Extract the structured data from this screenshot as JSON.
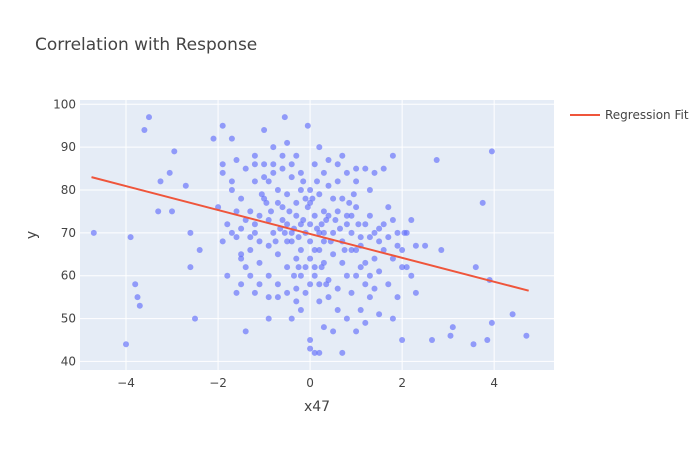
{
  "chart_data": {
    "type": "scatter",
    "title": "Correlation with Response",
    "xlabel": "x47",
    "ylabel": "y",
    "xlim": [
      -5.0,
      5.3
    ],
    "ylim": [
      38,
      101
    ],
    "xticks": [
      -4,
      -2,
      0,
      2,
      4
    ],
    "xtick_labels": [
      "−4",
      "−2",
      "0",
      "2",
      "4"
    ],
    "yticks": [
      40,
      50,
      60,
      70,
      80,
      90,
      100
    ],
    "grid": true,
    "legend_position": "top-right",
    "colors": {
      "points": "#636efa",
      "line": "#ef553b",
      "plot_bg": "#e5ecf6",
      "grid": "#ffffff"
    },
    "series": [
      {
        "kind": "scatter",
        "points": [
          [
            -4.7,
            70
          ],
          [
            -4.0,
            44
          ],
          [
            -3.9,
            69
          ],
          [
            -3.8,
            58
          ],
          [
            -3.75,
            55
          ],
          [
            -3.7,
            53
          ],
          [
            -3.6,
            94
          ],
          [
            -3.5,
            97
          ],
          [
            -3.3,
            75
          ],
          [
            -3.25,
            82
          ],
          [
            -3.05,
            84
          ],
          [
            -2.95,
            89
          ],
          [
            -3.0,
            75
          ],
          [
            -2.7,
            81
          ],
          [
            -2.6,
            62
          ],
          [
            -2.6,
            70
          ],
          [
            -2.5,
            50
          ],
          [
            -2.4,
            66
          ],
          [
            -2.1,
            92
          ],
          [
            -1.9,
            95
          ],
          [
            -1.7,
            92
          ],
          [
            -1.4,
            47
          ],
          [
            -1.0,
            94
          ],
          [
            -0.55,
            97
          ],
          [
            -0.5,
            91
          ],
          [
            -0.05,
            95
          ],
          [
            0.7,
            42
          ],
          [
            0.0,
            43
          ],
          [
            0.1,
            42
          ],
          [
            0.2,
            42
          ],
          [
            2.05,
            70
          ],
          [
            2.2,
            73
          ],
          [
            2.3,
            67
          ],
          [
            2.5,
            67
          ],
          [
            2.65,
            45
          ],
          [
            2.75,
            87
          ],
          [
            2.85,
            66
          ],
          [
            3.05,
            46
          ],
          [
            3.1,
            48
          ],
          [
            3.55,
            44
          ],
          [
            3.6,
            62
          ],
          [
            3.75,
            77
          ],
          [
            3.9,
            59
          ],
          [
            3.85,
            45
          ],
          [
            3.95,
            49
          ],
          [
            3.95,
            89
          ],
          [
            4.4,
            51
          ],
          [
            4.7,
            46
          ],
          [
            -1.8,
            60
          ],
          [
            -1.6,
            56
          ],
          [
            -1.5,
            58
          ],
          [
            -1.2,
            56
          ],
          [
            -0.9,
            50
          ],
          [
            -0.7,
            55
          ],
          [
            -0.4,
            50
          ],
          [
            -0.2,
            52
          ],
          [
            0.0,
            45
          ],
          [
            0.3,
            48
          ],
          [
            0.5,
            47
          ],
          [
            0.8,
            50
          ],
          [
            1.0,
            47
          ],
          [
            1.2,
            49
          ],
          [
            1.5,
            51
          ],
          [
            1.8,
            50
          ],
          [
            2.0,
            45
          ],
          [
            1.6,
            85
          ],
          [
            1.8,
            88
          ],
          [
            1.4,
            84
          ],
          [
            1.3,
            80
          ],
          [
            1.0,
            85
          ],
          [
            0.7,
            88
          ],
          [
            0.4,
            87
          ],
          [
            0.2,
            90
          ],
          [
            -0.3,
            88
          ],
          [
            -0.8,
            90
          ],
          [
            -1.2,
            88
          ],
          [
            -1.6,
            87
          ],
          [
            -1.9,
            84
          ],
          [
            -1.7,
            80
          ],
          [
            -2.0,
            76
          ],
          [
            -1.8,
            72
          ],
          [
            -1.6,
            69
          ],
          [
            -1.5,
            64
          ],
          [
            -1.4,
            62
          ],
          [
            -1.3,
            66
          ],
          [
            -1.2,
            70
          ],
          [
            -1.1,
            74
          ],
          [
            -1.0,
            78
          ],
          [
            -0.9,
            82
          ],
          [
            -0.8,
            86
          ],
          [
            -0.7,
            80
          ],
          [
            -0.6,
            76
          ],
          [
            -0.5,
            72
          ],
          [
            -0.4,
            68
          ],
          [
            -0.3,
            64
          ],
          [
            -0.2,
            60
          ],
          [
            -0.1,
            56
          ],
          [
            0.0,
            58
          ],
          [
            0.1,
            62
          ],
          [
            0.2,
            66
          ],
          [
            0.3,
            70
          ],
          [
            0.4,
            74
          ],
          [
            0.5,
            78
          ],
          [
            0.6,
            82
          ],
          [
            0.7,
            78
          ],
          [
            0.8,
            74
          ],
          [
            0.9,
            70
          ],
          [
            1.0,
            66
          ],
          [
            1.1,
            62
          ],
          [
            1.2,
            58
          ],
          [
            1.3,
            60
          ],
          [
            1.4,
            64
          ],
          [
            1.5,
            68
          ],
          [
            1.6,
            72
          ],
          [
            1.7,
            76
          ],
          [
            1.8,
            73
          ],
          [
            1.9,
            70
          ],
          [
            2.0,
            66
          ],
          [
            2.1,
            62
          ],
          [
            2.2,
            60
          ],
          [
            2.3,
            56
          ],
          [
            1.9,
            55
          ],
          [
            1.7,
            58
          ],
          [
            1.5,
            61
          ],
          [
            1.3,
            55
          ],
          [
            1.1,
            52
          ],
          [
            0.9,
            56
          ],
          [
            0.6,
            52
          ],
          [
            0.4,
            55
          ],
          [
            0.2,
            58
          ],
          [
            -0.1,
            62
          ],
          [
            -0.3,
            57
          ],
          [
            -0.5,
            62
          ],
          [
            -0.7,
            65
          ],
          [
            -0.9,
            60
          ],
          [
            -1.1,
            63
          ],
          [
            -1.3,
            75
          ],
          [
            -1.5,
            78
          ],
          [
            -1.7,
            82
          ],
          [
            -1.9,
            86
          ],
          [
            -1.4,
            85
          ],
          [
            -1.2,
            82
          ],
          [
            -1.0,
            83
          ],
          [
            -0.6,
            85
          ],
          [
            -0.4,
            83
          ],
          [
            -0.2,
            80
          ],
          [
            0.0,
            77
          ],
          [
            0.2,
            79
          ],
          [
            0.4,
            81
          ],
          [
            0.6,
            75
          ],
          [
            0.8,
            72
          ],
          [
            1.0,
            76
          ],
          [
            1.2,
            72
          ],
          [
            1.4,
            70
          ],
          [
            1.6,
            66
          ],
          [
            1.8,
            64
          ],
          [
            2.0,
            62
          ],
          [
            -0.2,
            72
          ],
          [
            -0.1,
            70
          ],
          [
            0.0,
            72
          ],
          [
            0.1,
            74
          ],
          [
            -0.3,
            74
          ],
          [
            -0.4,
            70
          ],
          [
            0.2,
            70
          ],
          [
            0.3,
            68
          ],
          [
            -0.5,
            68
          ],
          [
            0.0,
            68
          ],
          [
            0.1,
            66
          ],
          [
            -0.2,
            66
          ],
          [
            0.3,
            75
          ],
          [
            -0.6,
            73
          ],
          [
            0.5,
            70
          ],
          [
            -0.8,
            70
          ],
          [
            0.7,
            68
          ],
          [
            -0.9,
            73
          ],
          [
            0.9,
            74
          ],
          [
            -1.2,
            72
          ],
          [
            1.1,
            69
          ],
          [
            -1.4,
            73
          ],
          [
            1.3,
            74
          ],
          [
            -1.6,
            75
          ],
          [
            0.0,
            80
          ],
          [
            0.0,
            64
          ],
          [
            -0.1,
            78
          ],
          [
            0.1,
            60
          ],
          [
            0.3,
            63
          ],
          [
            -0.3,
            77
          ],
          [
            0.5,
            65
          ],
          [
            -0.5,
            79
          ],
          [
            0.7,
            63
          ],
          [
            -0.7,
            77
          ],
          [
            0.9,
            66
          ],
          [
            -0.9,
            67
          ],
          [
            1.1,
            67
          ],
          [
            -1.1,
            68
          ],
          [
            1.3,
            69
          ],
          [
            -1.3,
            69
          ],
          [
            1.5,
            71
          ],
          [
            -1.5,
            71
          ],
          [
            1.7,
            69
          ],
          [
            -1.7,
            70
          ],
          [
            1.9,
            67
          ],
          [
            -1.9,
            68
          ],
          [
            2.1,
            70
          ],
          [
            -0.2,
            84
          ],
          [
            0.1,
            86
          ],
          [
            0.3,
            84
          ],
          [
            -0.4,
            86
          ],
          [
            0.6,
            86
          ],
          [
            -0.6,
            88
          ],
          [
            0.8,
            84
          ],
          [
            -0.8,
            84
          ],
          [
            1.0,
            82
          ],
          [
            -1.0,
            86
          ],
          [
            1.2,
            85
          ],
          [
            -1.2,
            86
          ],
          [
            -0.3,
            54
          ],
          [
            0.2,
            54
          ],
          [
            -0.5,
            56
          ],
          [
            0.4,
            59
          ],
          [
            -0.7,
            58
          ],
          [
            0.6,
            57
          ],
          [
            -0.9,
            55
          ],
          [
            0.8,
            60
          ],
          [
            -1.1,
            58
          ],
          [
            1.0,
            60
          ],
          [
            -1.3,
            60
          ],
          [
            1.2,
            63
          ],
          [
            -1.5,
            65
          ],
          [
            1.4,
            57
          ],
          [
            -0.15,
            73
          ],
          [
            0.15,
            71
          ],
          [
            -0.25,
            69
          ],
          [
            0.25,
            72
          ],
          [
            -0.35,
            71
          ],
          [
            0.35,
            73
          ],
          [
            -0.45,
            75
          ],
          [
            0.45,
            68
          ],
          [
            -0.55,
            70
          ],
          [
            0.55,
            73
          ],
          [
            -0.65,
            71
          ],
          [
            0.65,
            71
          ],
          [
            -0.75,
            68
          ],
          [
            0.75,
            66
          ],
          [
            -0.85,
            75
          ],
          [
            0.85,
            77
          ],
          [
            -0.95,
            77
          ],
          [
            0.95,
            79
          ],
          [
            -1.05,
            79
          ],
          [
            1.05,
            72
          ],
          [
            -0.05,
            76
          ],
          [
            0.05,
            78
          ],
          [
            -0.15,
            82
          ],
          [
            0.15,
            82
          ],
          [
            -0.25,
            62
          ],
          [
            0.25,
            62
          ],
          [
            -0.35,
            60
          ],
          [
            0.35,
            58
          ]
        ]
      },
      {
        "kind": "line",
        "name": "Regression Fit",
        "x": [
          -4.75,
          4.75
        ],
        "y": [
          83,
          56.5
        ]
      }
    ]
  }
}
